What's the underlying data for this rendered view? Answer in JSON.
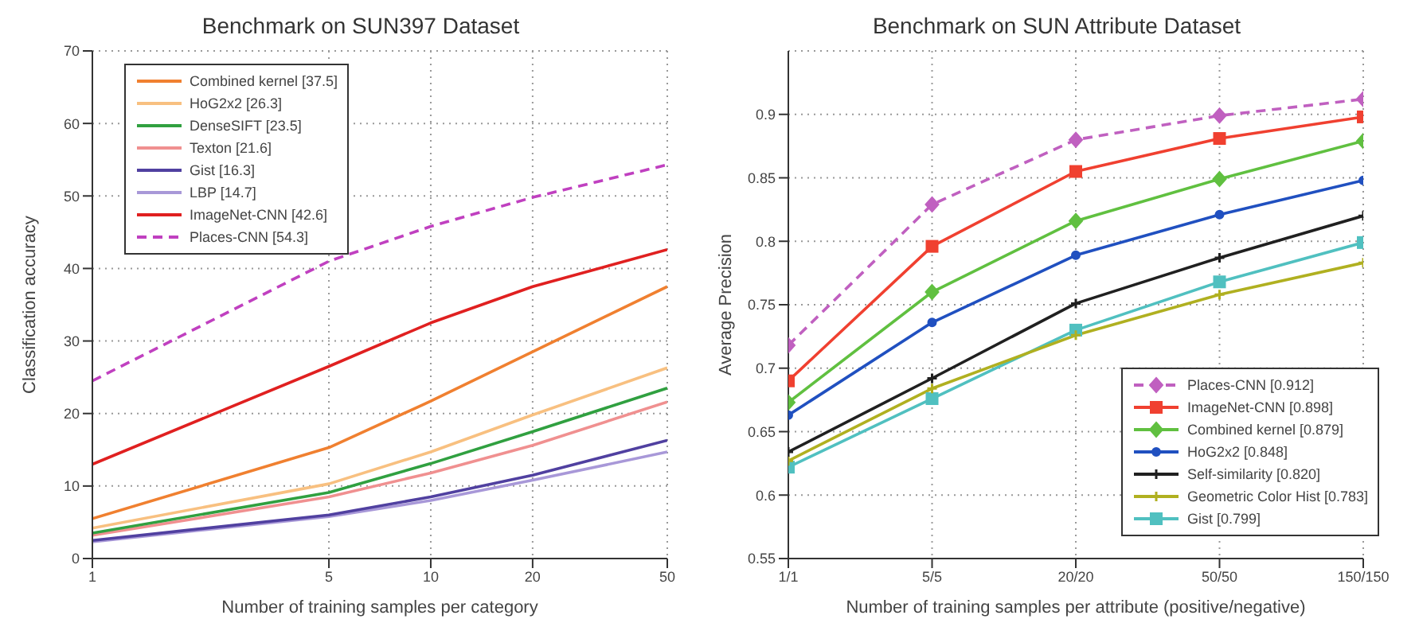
{
  "chart_data": [
    {
      "type": "line",
      "title": "Benchmark on SUN397 Dataset",
      "xlabel": "Number of training samples per category",
      "ylabel": "Classification accuracy",
      "x": [
        1,
        5,
        10,
        20,
        50
      ],
      "log": "x",
      "xlim": [
        1,
        50
      ],
      "xticks": [
        1,
        5,
        10,
        20,
        50
      ],
      "ylim": [
        0,
        70
      ],
      "yticks": [
        0,
        10,
        20,
        30,
        40,
        50,
        60,
        70
      ],
      "grid": true,
      "legend": "top left",
      "marker": "none",
      "series": [
        {
          "name": "Combined kernel [37.5]",
          "color": "#f08030",
          "values": [
            5.5,
            15.3,
            21.7,
            28.5,
            37.5
          ]
        },
        {
          "name": "HoG2x2 [26.3]",
          "color": "#f8c080",
          "values": [
            4.2,
            10.3,
            14.7,
            19.8,
            26.3
          ]
        },
        {
          "name": "DenseSIFT [23.5]",
          "color": "#30a040",
          "values": [
            3.5,
            9.1,
            13.1,
            17.5,
            23.5
          ]
        },
        {
          "name": "Texton [21.6]",
          "color": "#f09090",
          "values": [
            3.2,
            8.5,
            11.8,
            15.6,
            21.6
          ]
        },
        {
          "name": "Gist [16.3]",
          "color": "#5040a0",
          "values": [
            2.5,
            6,
            8.5,
            11.5,
            16.3
          ]
        },
        {
          "name": "LBP [14.7]",
          "color": "#a898d8",
          "values": [
            2.3,
            5.8,
            8,
            10.8,
            14.7
          ]
        },
        {
          "name": "ImageNet-CNN [42.6]",
          "color": "#e02020",
          "values": [
            13,
            26.5,
            32.5,
            37.5,
            42.6
          ]
        },
        {
          "name": "Places-CNN [54.3]",
          "color": "#c040c0",
          "line_style": "dashed",
          "values": [
            24.5,
            41,
            45.8,
            49.8,
            54.3
          ]
        }
      ]
    },
    {
      "type": "line",
      "title": "Benchmark on SUN Attribute Dataset",
      "xlabel": "Number of training samples per attribute (positive/negative)",
      "ylabel": "Average Precision",
      "categories": [
        "1/1",
        "5/5",
        "20/20",
        "50/50",
        "150/150"
      ],
      "ylim": [
        0.55,
        0.95
      ],
      "yticks": [
        0.55,
        0.6,
        0.65,
        0.7,
        0.75,
        0.8,
        0.85,
        0.9
      ],
      "grid": true,
      "legend": "bottom right",
      "series": [
        {
          "name": "Places-CNN [0.912]",
          "color": "#c060c0",
          "line_style": "dashed",
          "marker": "diamond",
          "values": [
            0.718,
            0.829,
            0.88,
            0.899,
            0.912
          ]
        },
        {
          "name": "ImageNet-CNN [0.898]",
          "color": "#f04030",
          "marker": "square",
          "values": [
            0.69,
            0.796,
            0.855,
            0.881,
            0.898
          ]
        },
        {
          "name": "Combined kernel [0.879]",
          "color": "#60c040",
          "marker": "diamond",
          "values": [
            0.673,
            0.76,
            0.816,
            0.849,
            0.879
          ]
        },
        {
          "name": "HoG2x2 [0.848]",
          "color": "#2050c0",
          "marker": "circle",
          "values": [
            0.663,
            0.736,
            0.789,
            0.821,
            0.848
          ]
        },
        {
          "name": "Self-similarity [0.820]",
          "color": "#202020",
          "marker": "cross",
          "values": [
            0.634,
            0.692,
            0.751,
            0.787,
            0.82
          ]
        },
        {
          "name": "Geometric Color Hist [0.783]",
          "color": "#b0b020",
          "marker": "cross",
          "values": [
            0.627,
            0.684,
            0.726,
            0.758,
            0.783
          ]
        },
        {
          "name": "Gist [0.799]",
          "color": "#50c0c0",
          "marker": "square",
          "values": [
            0.622,
            0.676,
            0.73,
            0.768,
            0.799
          ]
        }
      ]
    }
  ]
}
